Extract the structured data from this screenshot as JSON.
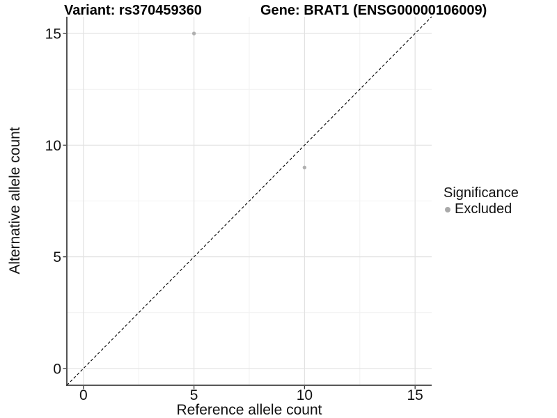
{
  "header": {
    "variant_title": "Variant: rs370459360",
    "gene_title": "Gene: BRAT1 (ENSG00000106009)"
  },
  "axes": {
    "x_label": "Reference allele count",
    "y_label": "Alternative allele count"
  },
  "legend": {
    "title": "Significance",
    "items": [
      {
        "label": "Excluded",
        "color": "#a9a9a9"
      }
    ]
  },
  "colors": {
    "background": "#ffffff",
    "major_grid": "#e2e2e2",
    "minor_grid": "#f1f1f1",
    "axis_line": "#404040",
    "tick_mark": "#333333",
    "tick_label": "#111111",
    "point": "#b0b0b0",
    "identity_line": "#000000"
  },
  "chart_data": {
    "type": "scatter",
    "title": "Variant: rs370459360 / Gene: BRAT1 (ENSG00000106009)",
    "xlabel": "Reference allele count",
    "ylabel": "Alternative allele count",
    "xlim": [
      -0.75,
      15.75
    ],
    "ylim": [
      -0.75,
      15.75
    ],
    "x_ticks": [
      0,
      5,
      10,
      15
    ],
    "y_ticks": [
      0,
      5,
      10,
      15
    ],
    "grid": true,
    "minor_grid": true,
    "legend_position": "right",
    "legend_title": "Significance",
    "series": [
      {
        "name": "Excluded",
        "color": "#b0b0b0",
        "points": [
          {
            "x": 5,
            "y": 15
          },
          {
            "x": 10,
            "y": 9
          }
        ]
      }
    ],
    "reference_line": {
      "kind": "identity",
      "style": "dashed",
      "from": [
        -0.75,
        -0.75
      ],
      "to": [
        15.75,
        15.75
      ],
      "color": "#000000"
    }
  }
}
